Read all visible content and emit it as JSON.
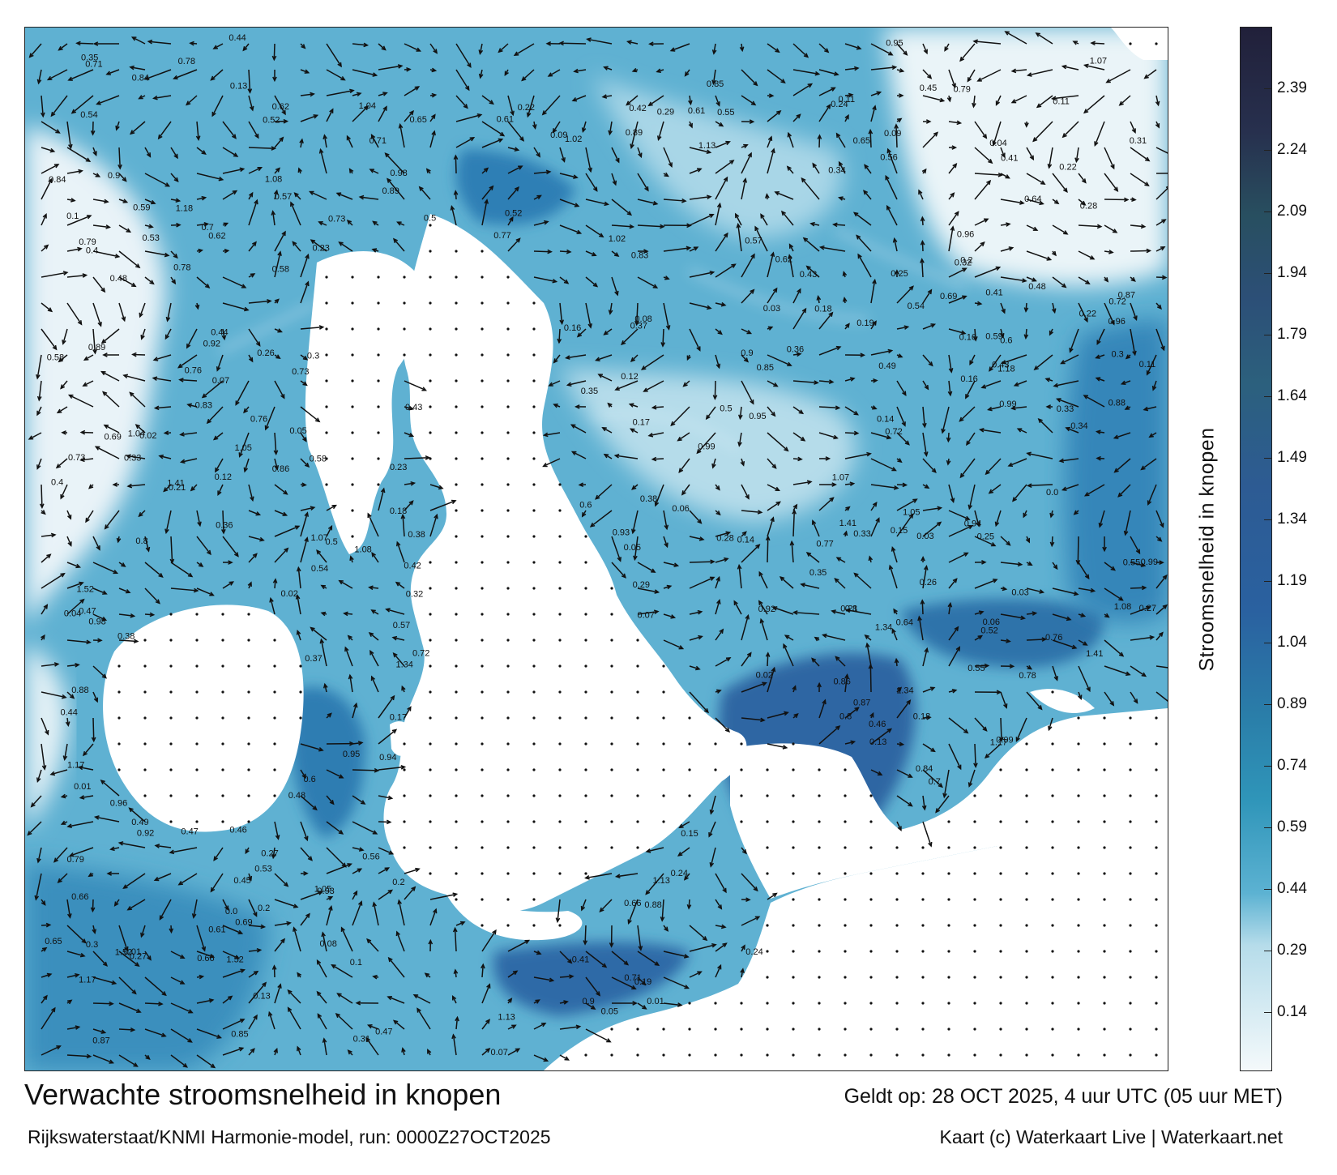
{
  "header": {
    "title": "Verwachte stroomsnelheid in knopen",
    "subtitle": "Rijkswaterstaat/KNMI Harmonie-model, run: 0000Z27OCT2025",
    "valid_time": "Geldt op: 28 OCT 2025, 4 uur UTC (05 uur MET)",
    "credit": "Kaart (c) Waterkaart Live | Waterkaart.net"
  },
  "colorbar": {
    "title": "Stroomsnelheid in knopen",
    "ticks": [
      "0.14",
      "0.29",
      "0.44",
      "0.59",
      "0.74",
      "0.89",
      "1.04",
      "1.19",
      "1.34",
      "1.49",
      "1.64",
      "1.79",
      "1.94",
      "2.09",
      "2.24",
      "2.39"
    ],
    "tick_values": [
      0.14,
      0.29,
      0.44,
      0.59,
      0.74,
      0.89,
      1.04,
      1.19,
      1.34,
      1.49,
      1.64,
      1.79,
      1.94,
      2.09,
      2.24,
      2.39
    ],
    "min": 0.0,
    "max": 2.54,
    "colors": {
      "low": "#f2f7fa",
      "light": "#9cd1e4",
      "mid": "#2f95b9",
      "strong": "#2a5f9e",
      "high": "#2c4f77",
      "top": "#21203a"
    }
  },
  "map": {
    "water_color": "#4fa9cc",
    "land_color": "#ffffff",
    "arrow_color": "#111111",
    "labels": [
      {
        "text": "0.9"
      },
      {
        "text": "0.96"
      },
      {
        "text": "0.54"
      },
      {
        "text": "0.47"
      },
      {
        "text": "0.62"
      },
      {
        "text": "1.52"
      },
      {
        "text": "1.34"
      },
      {
        "text": "1.41"
      },
      {
        "text": "1.17"
      },
      {
        "text": "1.05"
      },
      {
        "text": "0.99"
      },
      {
        "text": "0.89"
      },
      {
        "text": "0.87"
      },
      {
        "text": "0.84"
      },
      {
        "text": "0.76"
      },
      {
        "text": "0.8"
      },
      {
        "text": "0.73"
      },
      {
        "text": "0.69"
      },
      {
        "text": "0.6"
      },
      {
        "text": "0.55"
      },
      {
        "text": "0.92"
      },
      {
        "text": "1.08"
      },
      {
        "text": "1.13"
      },
      {
        "text": "1.07"
      },
      {
        "text": "0.95"
      },
      {
        "text": "0.88"
      },
      {
        "text": "0.78"
      },
      {
        "text": "0.57"
      },
      {
        "text": "0.48"
      },
      {
        "text": "0.43"
      },
      {
        "text": "0.41"
      },
      {
        "text": "0.44"
      },
      {
        "text": "0.38"
      },
      {
        "text": "0.35"
      },
      {
        "text": "0.33"
      },
      {
        "text": "0.3"
      },
      {
        "text": "0.27"
      },
      {
        "text": "0.24"
      },
      {
        "text": "0.22"
      },
      {
        "text": "0.2"
      },
      {
        "text": "0.18"
      },
      {
        "text": "0.16"
      },
      {
        "text": "0.13"
      },
      {
        "text": "0.11"
      },
      {
        "text": "0.09"
      },
      {
        "text": "0.07"
      },
      {
        "text": "0.05"
      },
      {
        "text": "0.03"
      },
      {
        "text": "0.02"
      },
      {
        "text": "0.01"
      },
      {
        "text": "0.52"
      },
      {
        "text": "0.66"
      },
      {
        "text": "0.58"
      },
      {
        "text": "0.61"
      },
      {
        "text": "0.5"
      },
      {
        "text": "0.85"
      },
      {
        "text": "0.72"
      },
      {
        "text": "0.79"
      },
      {
        "text": "0.71"
      },
      {
        "text": "0.65"
      },
      {
        "text": "0.56"
      },
      {
        "text": "0.49"
      },
      {
        "text": "0.42"
      },
      {
        "text": "0.37"
      },
      {
        "text": "0.32"
      },
      {
        "text": "0.29"
      },
      {
        "text": "0.25"
      },
      {
        "text": "0.21"
      },
      {
        "text": "0.19"
      },
      {
        "text": "0.15"
      },
      {
        "text": "0.12"
      },
      {
        "text": "0.1"
      },
      {
        "text": "0.08"
      },
      {
        "text": "0.06"
      },
      {
        "text": "0.04"
      },
      {
        "text": "1.02"
      },
      {
        "text": "0.94"
      },
      {
        "text": "0.83"
      },
      {
        "text": "0.77"
      },
      {
        "text": "0.7"
      },
      {
        "text": "0.64"
      },
      {
        "text": "0.59"
      },
      {
        "text": "0.53"
      },
      {
        "text": "0.46"
      },
      {
        "text": "0.45"
      },
      {
        "text": "0.4"
      },
      {
        "text": "0.36"
      },
      {
        "text": "0.34"
      },
      {
        "text": "0.31"
      },
      {
        "text": "0.28"
      },
      {
        "text": "0.26"
      },
      {
        "text": "0.23"
      },
      {
        "text": "0.17"
      },
      {
        "text": "0.14"
      },
      {
        "text": "0.0"
      },
      {
        "text": "1.18"
      },
      {
        "text": "1.04"
      },
      {
        "text": "0.98"
      },
      {
        "text": "0.93"
      },
      {
        "text": "0.86"
      }
    ]
  }
}
